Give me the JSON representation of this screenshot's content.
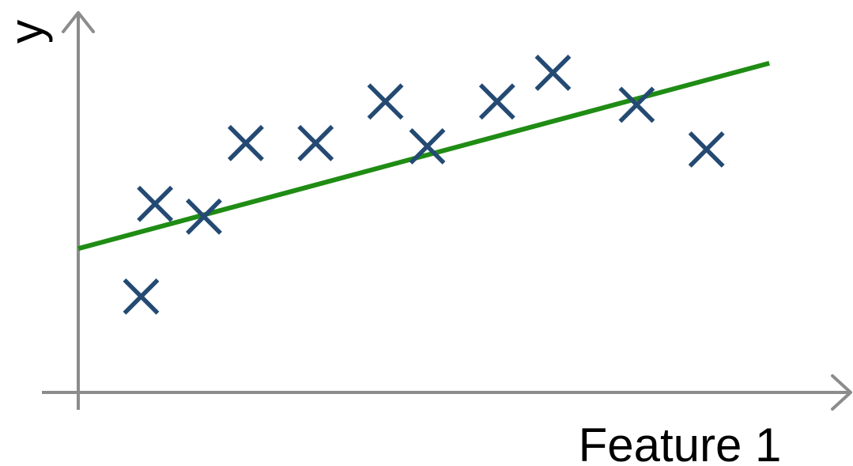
{
  "chart_data": {
    "type": "scatter",
    "title": "",
    "xlabel": "Feature 1",
    "ylabel": "y",
    "xlim": [
      0,
      10
    ],
    "ylim": [
      0,
      10
    ],
    "grid": false,
    "legend": "none",
    "ticks_shown": false,
    "colors": {
      "axis": "#8c8c8c",
      "points": "#244a73",
      "fit_line": "#1f8c14"
    },
    "series": [
      {
        "kind": "points",
        "marker": "x",
        "x": [
          0.9,
          1.1,
          1.8,
          2.4,
          3.4,
          4.4,
          5.0,
          6.0,
          6.8,
          8.0,
          9.0
        ],
        "y": [
          3.0,
          5.9,
          5.5,
          7.8,
          7.8,
          9.1,
          7.7,
          9.1,
          10.0,
          9.0,
          7.6
        ]
      },
      {
        "kind": "line",
        "x": [
          0.0,
          9.9
        ],
        "y": [
          4.5,
          10.3
        ]
      }
    ]
  }
}
